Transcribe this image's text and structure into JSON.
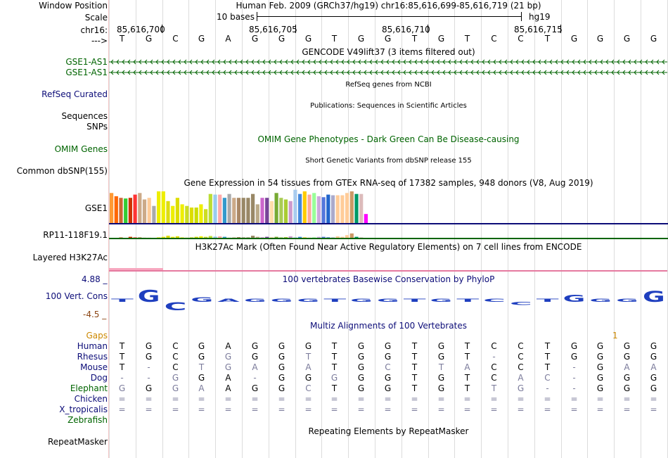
{
  "header": {
    "window_position_label": "Window Position",
    "scale_label": "Scale",
    "chrom_label": "chr16:",
    "strand_label": "--->",
    "position_text": "Human Feb. 2009 (GRCh37/hg19)   chr16:85,616,699-85,616,719 (21 bp)",
    "scale_text": "10 bases",
    "assembly": "hg19",
    "ticks": [
      "85,616,700",
      "85,616,705",
      "85,616,710",
      "85,616,715"
    ]
  },
  "sequence": [
    "T",
    "G",
    "C",
    "G",
    "A",
    "G",
    "G",
    "G",
    "T",
    "G",
    "G",
    "T",
    "G",
    "T",
    "C",
    "C",
    "T",
    "G",
    "G",
    "G",
    "G"
  ],
  "tracks": {
    "gencode": {
      "title": "GENCODE V49lift37 (3 items filtered out)",
      "items": [
        "GSE1-AS1",
        "GSE1-AS1"
      ],
      "color": "#006400"
    },
    "refseq": {
      "label": "RefSeq Curated",
      "title": "RefSeq genes from NCBI",
      "color": "#0c0c78"
    },
    "sequences": {
      "label": "Sequences",
      "title": "Publications: Sequences in Scientific Articles"
    },
    "snps": {
      "label": "SNPs"
    },
    "omim": {
      "label": "OMIM Genes",
      "title": "OMIM Gene Phenotypes - Dark Green Can Be Disease-causing",
      "color": "#006400"
    },
    "dbsnp": {
      "label": "Common dbSNP(155)",
      "title": "Short Genetic Variants from dbSNP release 155"
    },
    "gtex": {
      "title": "Gene Expression in 54 tissues from GTEx RNA-seq of 17382 samples, 948 donors (V8, Aug 2019)",
      "genes": [
        "GSE1",
        "RP11-118F19.1"
      ],
      "gse1_bars": [
        0.95,
        0.85,
        0.8,
        0.78,
        0.8,
        0.9,
        0.95,
        0.75,
        0.8,
        0.55,
        1.0,
        1.0,
        0.7,
        0.55,
        0.8,
        0.6,
        0.55,
        0.5,
        0.5,
        0.6,
        0.45,
        0.92,
        0.9,
        0.9,
        0.8,
        0.92,
        0.8,
        0.8,
        0.8,
        0.8,
        0.92,
        0.6,
        0.8,
        0.8,
        0.7,
        0.95,
        0.8,
        0.75,
        0.7,
        1.05,
        0.92,
        1.0,
        0.9,
        0.95,
        0.85,
        0.82,
        0.9,
        0.88,
        0.88,
        0.88,
        0.95,
        1.0,
        0.92,
        0.92,
        0.3
      ],
      "gse1_colors": [
        "#ff9933",
        "#ff6600",
        "#cc6633",
        "#33cc33",
        "#cc3300",
        "#ff3333",
        "#ccaa88",
        "#ccaa88",
        "#ffcc99",
        "#aaaaaa",
        "#eeee00",
        "#eeee00",
        "#dddd11",
        "#eeee00",
        "#dddd00",
        "#eeee00",
        "#ccdd22",
        "#dddd00",
        "#ccdd00",
        "#eeee00",
        "#ccdd22",
        "#bbdd33",
        "#99ccee",
        "#ffaaaa",
        "#3399cc",
        "#aaaaaa",
        "#ccaa88",
        "#aa8866",
        "#998866",
        "#998866",
        "#998866",
        "#bbaa88",
        "#cc66cc",
        "#774499",
        "#ffddaa",
        "#77aa33",
        "#aacc55",
        "#aacc33",
        "#cc99cc",
        "#aaccee",
        "#4488dd",
        "#ffcc00",
        "#ffaa99",
        "#99ff99",
        "#ccaadd",
        "#5577dd",
        "#2266cc",
        "#aaaacc",
        "#ffcc99",
        "#ffcc99",
        "#ffcc99",
        "#cc9966",
        "#009966",
        "#ddbbbb",
        "#ff00ff"
      ],
      "rp11_bars": [
        0.05,
        0.1,
        0.2,
        0.1,
        0.3,
        0.2,
        0.25,
        0.15,
        0.15,
        0.1,
        0.2,
        0.3,
        0.5,
        0.3,
        0.4,
        0.2,
        0.15,
        0.2,
        0.3,
        0.4,
        0.3,
        0.45,
        0.35,
        0.4,
        0.3,
        0.15,
        0.2,
        0.25,
        0.2,
        0.2,
        0.5,
        0.3,
        0.2,
        0.3,
        0.25,
        0.3,
        0.2,
        0.25,
        0.4,
        0.2,
        0.3,
        0.2,
        0.15,
        0.2,
        0.3,
        0.3,
        0.2,
        0.2,
        0.4,
        0.3,
        0.6,
        0.9,
        0.3,
        0.2,
        0.1
      ]
    },
    "h3k27ac": {
      "label": "Layered H3K27Ac",
      "title": "H3K27Ac Mark (Often Found Near Active Regulatory Elements) on 7 cell lines from ENCODE"
    },
    "phylop": {
      "label": "100 Vert. Cons",
      "title": "100 vertebrates Basewise Conservation by PhyloP",
      "max_label": "4.88 _",
      "min_label": "-4.5 _",
      "values": [
        0.3,
        2.6,
        -1.8,
        1.0,
        0.25,
        0.12,
        0.12,
        0.15,
        0.15,
        0.4,
        0.5,
        0.0,
        0.0,
        0.0,
        0.0,
        -0.4,
        0.3,
        1.5,
        0.4,
        0.4,
        2.4
      ]
    },
    "multiz": {
      "title": "Multiz Alignments of 100 Vertebrates",
      "gaps_label": "Gaps",
      "gaps_marker": "1",
      "species": [
        {
          "name": "Human",
          "bases": [
            "T",
            "G",
            "C",
            "G",
            "A",
            "G",
            "G",
            "G",
            "T",
            "G",
            "G",
            "T",
            "G",
            "T",
            "C",
            "C",
            "T",
            "G",
            "G",
            "G",
            "G"
          ]
        },
        {
          "name": "Rhesus",
          "bases": [
            "T",
            "G",
            "C",
            "G",
            "G",
            "G",
            "G",
            "T",
            "T",
            "G",
            "G",
            "T",
            "G",
            "T",
            "-",
            "C",
            "T",
            "G",
            "G",
            "G",
            "G"
          ]
        },
        {
          "name": "Mouse",
          "bases": [
            "T",
            "-",
            "C",
            "T",
            "G",
            "A",
            "G",
            "A",
            "T",
            "G",
            "C",
            "T",
            "T",
            "A",
            "C",
            "C",
            "T",
            "-",
            "G",
            "A",
            "A"
          ]
        },
        {
          "name": "Dog",
          "bases": [
            "-",
            "-",
            "G",
            "G",
            "A",
            "-",
            "G",
            "G",
            "G",
            "G",
            "G",
            "T",
            "G",
            "T",
            "C",
            "A",
            "C",
            "-",
            "G",
            "G",
            "G"
          ]
        },
        {
          "name": "Elephant",
          "bases": [
            "G",
            "G",
            "G",
            "A",
            "A",
            "G",
            "G",
            "C",
            "T",
            "G",
            "G",
            "T",
            "G",
            "T",
            "T",
            "G",
            "-",
            "-",
            "G",
            "G",
            "G"
          ]
        },
        {
          "name": "Chicken",
          "bases": [
            "=",
            "=",
            "=",
            "=",
            "=",
            "=",
            "=",
            "=",
            "=",
            "=",
            "=",
            "=",
            "=",
            "=",
            "=",
            "=",
            "=",
            "=",
            "=",
            "=",
            "="
          ]
        },
        {
          "name": "X_tropicalis",
          "bases": [
            "=",
            "=",
            "=",
            "=",
            "=",
            "=",
            "=",
            "=",
            "=",
            "=",
            "=",
            "=",
            "=",
            "=",
            "=",
            "=",
            "=",
            "=",
            "=",
            "=",
            "="
          ]
        },
        {
          "name": "Zebrafish",
          "bases": []
        }
      ]
    },
    "repeatmasker": {
      "label": "RepeatMasker",
      "title": "Repeating Elements by RepeatMasker"
    }
  },
  "colors": {
    "navy": "#0c0c78",
    "darkgreen": "#006400",
    "gaps": "#cc8800",
    "phylop_label": "#8b4513"
  }
}
